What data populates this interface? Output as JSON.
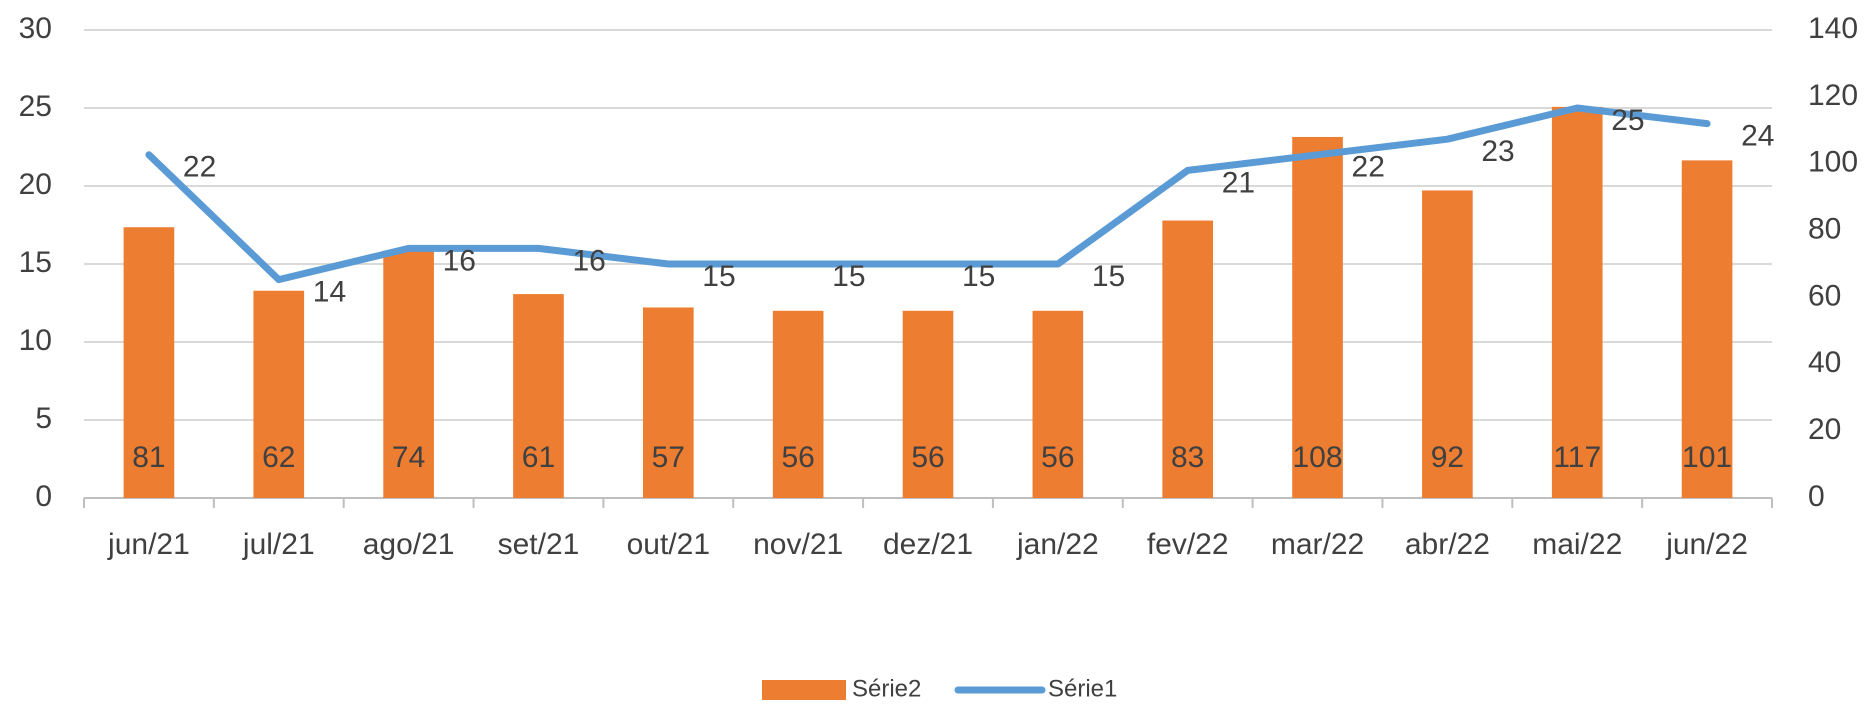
{
  "chart_data": {
    "type": "bar-line",
    "categories": [
      "jun/21",
      "jul/21",
      "ago/21",
      "set/21",
      "out/21",
      "nov/21",
      "dez/21",
      "jan/22",
      "fev/22",
      "mar/22",
      "abr/22",
      "mai/22",
      "jun/22"
    ],
    "series": [
      {
        "name": "Série2",
        "type": "bar",
        "axis": "y2",
        "color": "#ed7d31",
        "values": [
          81,
          62,
          74,
          61,
          57,
          56,
          56,
          56,
          83,
          108,
          92,
          117,
          101
        ]
      },
      {
        "name": "Série1",
        "type": "line",
        "axis": "y",
        "color": "#5b9bd5",
        "values": [
          22,
          14,
          16,
          16,
          15,
          15,
          15,
          15,
          21,
          22,
          23,
          25,
          24
        ]
      }
    ],
    "ylim": [
      0,
      30
    ],
    "yticks": [
      0,
      5,
      10,
      15,
      20,
      25,
      30
    ],
    "y2lim": [
      0,
      140
    ],
    "y2ticks": [
      0,
      20,
      40,
      60,
      80,
      100,
      120,
      140
    ],
    "grid": true,
    "legend": "bottom"
  }
}
